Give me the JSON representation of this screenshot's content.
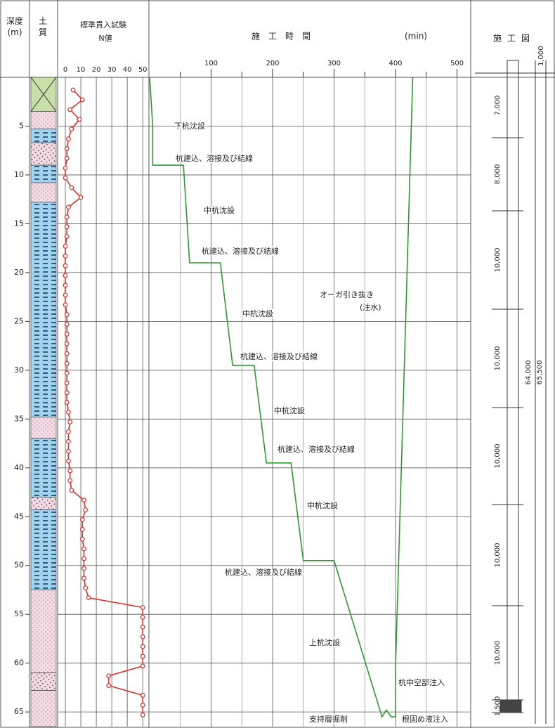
{
  "chart_data": [
    {
      "type": "line",
      "title": "標準貫入試験",
      "xlabel": "N値",
      "ylabel": "深度(m)",
      "color": "#d9302c",
      "xlim": [
        -5,
        54
      ],
      "xticks": [
        0,
        10,
        20,
        30,
        40,
        50
      ],
      "ylim": [
        0,
        66.5
      ],
      "yticks": [
        5,
        10,
        15,
        20,
        25,
        30,
        35,
        40,
        45,
        50,
        55,
        60,
        65
      ],
      "grid": true,
      "x": [
        5,
        11,
        3,
        9,
        4,
        2,
        1,
        1,
        0,
        0,
        4,
        10,
        2,
        1,
        1,
        1,
        0,
        0,
        0,
        0,
        0,
        0,
        0,
        1,
        1,
        1,
        1,
        1,
        1,
        1,
        1,
        1,
        1,
        2,
        3,
        2,
        2,
        2,
        2,
        3,
        3,
        4,
        12,
        13,
        11,
        11,
        11,
        12,
        12,
        12,
        12,
        13,
        15,
        50,
        50,
        50,
        50,
        50,
        50,
        50,
        28,
        28,
        50,
        50,
        50
      ],
      "y": [
        1.3,
        2.3,
        3.3,
        4.3,
        5.3,
        6.3,
        7.3,
        8.3,
        9.3,
        10.3,
        11.3,
        12.3,
        13.3,
        14.3,
        15.3,
        16.3,
        17.3,
        18.3,
        19.3,
        20.3,
        21.3,
        22.3,
        23.3,
        24.3,
        25.3,
        26.3,
        27.3,
        28.3,
        29.3,
        30.3,
        31.3,
        32.3,
        33.3,
        34.3,
        35.3,
        36.3,
        37.3,
        38.3,
        39.3,
        40.3,
        41.3,
        42.3,
        43.3,
        44.3,
        45.3,
        46.3,
        47.3,
        48.3,
        49.3,
        50.3,
        51.3,
        52.3,
        53.3,
        54.3,
        55.3,
        56.3,
        57.3,
        58.3,
        59.3,
        60.3,
        61.3,
        62.3,
        63.3,
        64.3,
        65.3
      ],
      "soil_label": "土質",
      "soil_layers": [
        {
          "top": 0,
          "bottom": 3.5,
          "type": "fill"
        },
        {
          "top": 3.5,
          "bottom": 5.3,
          "type": "sand"
        },
        {
          "top": 5.3,
          "bottom": 6.7,
          "type": "clay"
        },
        {
          "top": 6.7,
          "bottom": 9,
          "type": "gravel"
        },
        {
          "top": 9,
          "bottom": 10.8,
          "type": "clay"
        },
        {
          "top": 10.8,
          "bottom": 12.8,
          "type": "sand"
        },
        {
          "top": 12.8,
          "bottom": 34.8,
          "type": "clay"
        },
        {
          "top": 34.8,
          "bottom": 37,
          "type": "sand"
        },
        {
          "top": 37,
          "bottom": 43,
          "type": "clay"
        },
        {
          "top": 43,
          "bottom": 44.3,
          "type": "gravel"
        },
        {
          "top": 44.3,
          "bottom": 52.5,
          "type": "clay"
        },
        {
          "top": 52.5,
          "bottom": 61,
          "type": "sand"
        },
        {
          "top": 61,
          "bottom": 62.8,
          "type": "gravel"
        },
        {
          "top": 62.8,
          "bottom": 66.5,
          "type": "sand"
        }
      ]
    },
    {
      "type": "line",
      "xlabel": "施　工　時　間",
      "xunit": "(min)",
      "color": "#2e9a2e",
      "xlim": [
        0,
        520
      ],
      "xticks": [
        100,
        200,
        300,
        400,
        500
      ],
      "xminorticks": [
        50,
        150,
        250,
        350,
        450
      ],
      "ylim": [
        0,
        66.5
      ],
      "yticks": [
        5,
        10,
        15,
        20,
        25,
        30,
        35,
        40,
        45,
        50,
        55,
        60,
        65
      ],
      "grid": true,
      "x": [
        0,
        5,
        5,
        55,
        65,
        115,
        135,
        170,
        190,
        230,
        250,
        300,
        378,
        385,
        393,
        400,
        400,
        428
      ],
      "y": [
        0,
        5,
        9,
        9,
        19,
        19,
        29.5,
        29.5,
        39.5,
        39.5,
        49.5,
        49.5,
        65.5,
        64.8,
        65.5,
        65.5,
        60.5,
        0
      ],
      "annotations": [
        "下杭沈設",
        "杭建込、溶接及び結線",
        "中杭沈設",
        "杭建込、溶接及び結線",
        "オーガ引き抜き",
        "(注水)",
        "中杭沈設",
        "杭建込、溶接及び結線",
        "中杭沈設",
        "杭建込、溶接及び結線",
        "中杭沈設",
        "杭建込、溶接及び結線",
        "上杭沈設",
        "杭中空部注入",
        "支持層掘削",
        "根固め液注入"
      ]
    }
  ],
  "pile_diagram": {
    "title": "施工図",
    "top_label": "1,000",
    "segment_labels": [
      "7,000",
      "8,000",
      "10,000",
      "10,000",
      "10,000",
      "10,000",
      "10,000",
      "1,500"
    ],
    "total_labels": [
      "64,000",
      "65,500"
    ]
  }
}
